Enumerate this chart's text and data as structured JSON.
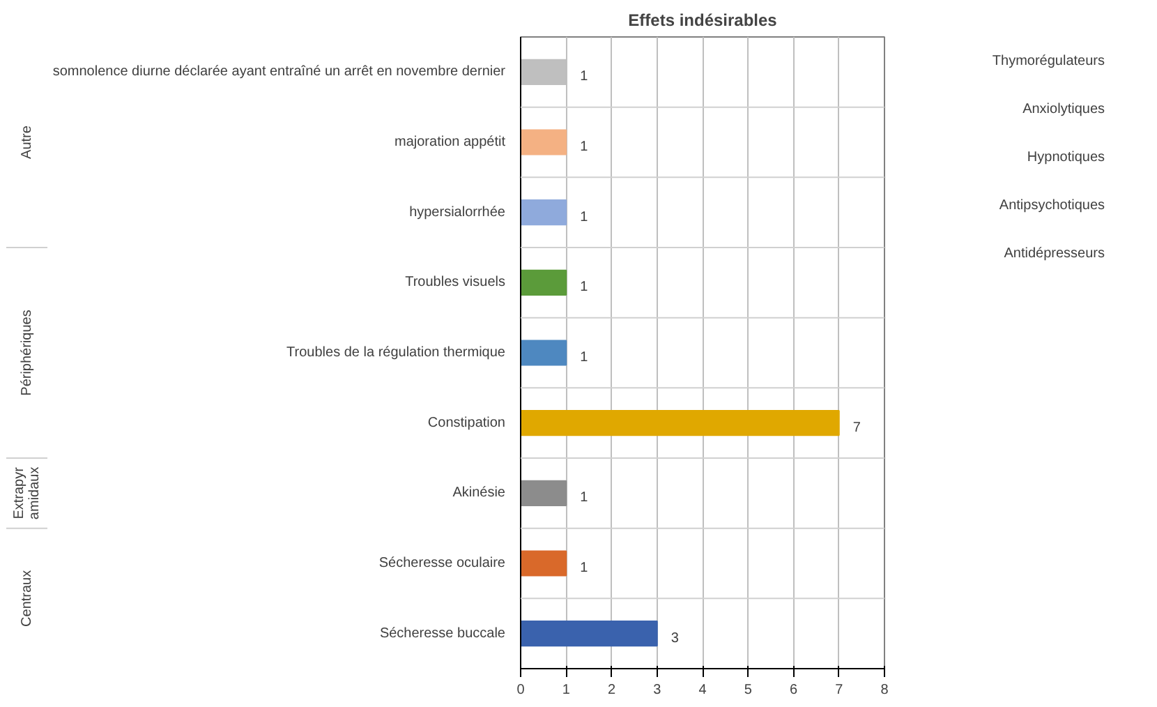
{
  "chart_data": [
    {
      "type": "bar",
      "orientation": "horizontal",
      "title": "Effets indésirables",
      "categories": [
        "somnolence diurne déclarée ayant entraîné un arrêt en novembre dernier",
        "majoration appétit",
        "hypersialorrhée",
        "Troubles visuels",
        "Troubles de la régulation thermique",
        "Constipation",
        "Akinésie",
        "Sécheresse oculaire",
        "Sécheresse buccale"
      ],
      "values": [
        1,
        1,
        1,
        1,
        1,
        7,
        1,
        1,
        3
      ],
      "colors": [
        "#bfbfbf",
        "#f4b183",
        "#8faadc",
        "#5b9b3a",
        "#4e88c0",
        "#e0a800",
        "#8c8c8c",
        "#d9692a",
        "#3a62ad"
      ],
      "xlim": [
        0,
        8
      ],
      "xticks": [
        0,
        1,
        2,
        3,
        4,
        5,
        6,
        7,
        8
      ],
      "grid": "x",
      "data_labels": true,
      "annotations": [
        "Autre",
        "Périphériques",
        "Extrapyr amidaux",
        "Centraux"
      ]
    },
    {
      "type": "other",
      "annotations": [
        "Thymorégulateurs",
        "Anxiolytiques",
        "Hypnotiques",
        "Antipsychotiques",
        "Antidépresseurs"
      ]
    }
  ]
}
